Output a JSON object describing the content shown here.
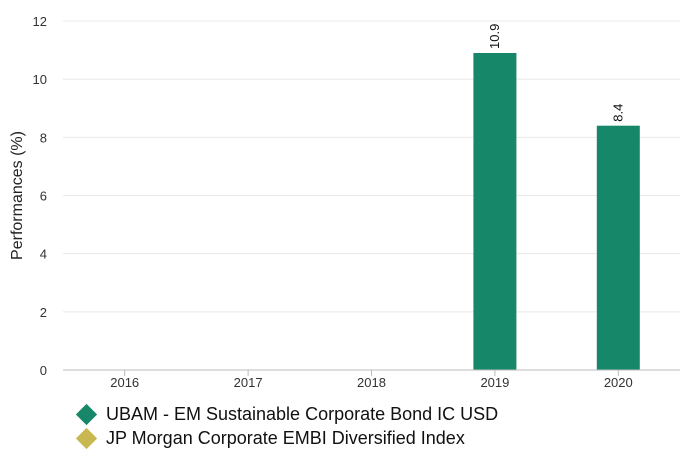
{
  "chart_data": {
    "type": "bar",
    "title": "",
    "xlabel": "",
    "ylabel": "Performances (%)",
    "categories": [
      "2016",
      "2017",
      "2018",
      "2019",
      "2020"
    ],
    "ylim": [
      0,
      12
    ],
    "yticks": [
      0,
      2,
      4,
      6,
      8,
      10,
      12
    ],
    "grid": true,
    "legend_position": "bottom",
    "series": [
      {
        "name": "UBAM - EM Sustainable Corporate Bond IC USD",
        "color": "#17876a",
        "values": [
          null,
          null,
          null,
          10.9,
          8.4
        ],
        "value_labels": [
          "",
          "",
          "",
          "10.9",
          "8.4"
        ]
      },
      {
        "name": "JP Morgan Corporate EMBI Diversified Index",
        "color": "#c8b84f",
        "values": [
          null,
          null,
          null,
          null,
          null
        ],
        "value_labels": [
          "",
          "",
          "",
          "",
          ""
        ]
      }
    ]
  }
}
